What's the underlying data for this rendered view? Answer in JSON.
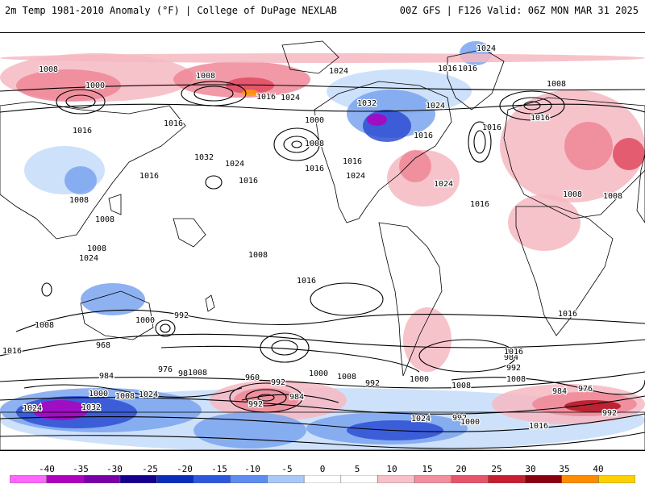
{
  "header": {
    "title_left": "2m Temp 1981-2010 Anomaly (°F) | College of DuPage NEXLAB",
    "title_right": "00Z GFS | F126 Valid: 06Z MON MAR 31 2025"
  },
  "map": {
    "type": "global-anomaly-map",
    "isobar_labels": [
      "1008",
      "1000",
      "1016",
      "1024",
      "1008",
      "1016",
      "1024",
      "1016",
      "1032",
      "1024",
      "1016",
      "1000",
      "1008",
      "1016",
      "1032",
      "1024",
      "1016",
      "1016",
      "1016",
      "1024",
      "1016",
      "1024",
      "1016",
      "1008",
      "1016",
      "1008",
      "1008",
      "1008",
      "1008",
      "1008",
      "1016",
      "1016",
      "1024",
      "1008",
      "1016",
      "1016",
      "992",
      "1000",
      "976",
      "984",
      "960",
      "968",
      "992",
      "984",
      "1008",
      "1000",
      "1008",
      "992",
      "984",
      "1000",
      "1008",
      "1024",
      "1032",
      "1024",
      "992",
      "1000",
      "1008",
      "976",
      "984",
      "992",
      "1008",
      "1016",
      "1008",
      "1016",
      "1024",
      "1016",
      "992",
      "1000",
      "984",
      "976",
      "992",
      "1024",
      "1016"
    ],
    "colors": {
      "land_outline": "#000000",
      "isobar": "#000000",
      "positive_anomaly": "#e8546a",
      "negative_anomaly": "#3a5bd9"
    }
  },
  "colorbar": {
    "ticks": [
      "-40",
      "-35",
      "-30",
      "-25",
      "-20",
      "-15",
      "-10",
      "-5",
      "0",
      "5",
      "10",
      "15",
      "20",
      "25",
      "30",
      "35",
      "40"
    ],
    "colors": [
      "#ff66ff",
      "#b000c0",
      "#7a00a8",
      "#15008f",
      "#0a2dbd",
      "#2c58e0",
      "#5f8cf0",
      "#a8c8f5",
      "#ffffff",
      "#ffffff",
      "#f8c0c8",
      "#f28f9e",
      "#e8546a",
      "#c81e30",
      "#8a0010",
      "#ff8c00",
      "#ffd000"
    ]
  }
}
